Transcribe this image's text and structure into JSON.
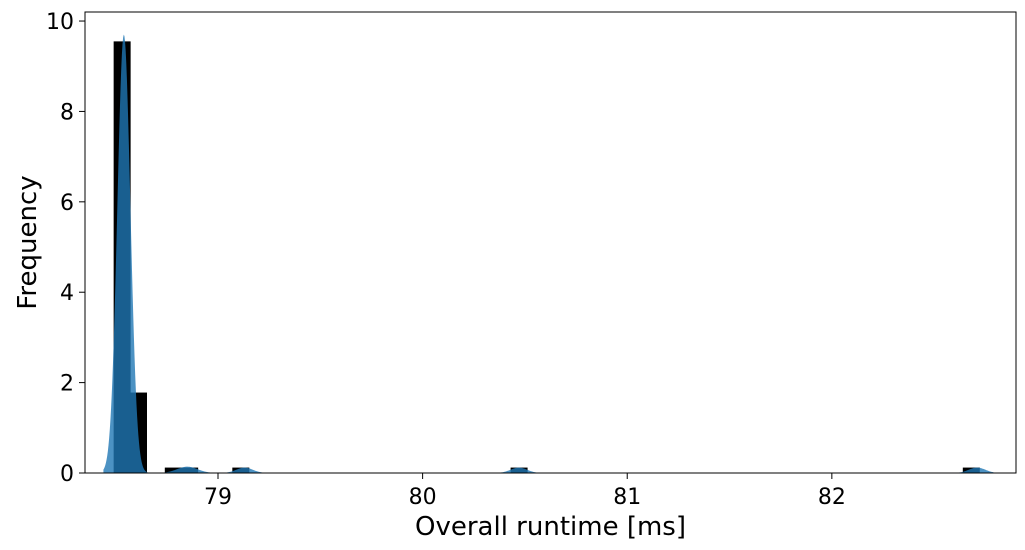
{
  "chart_data": {
    "type": "bar",
    "xlabel": "Overall runtime [ms]",
    "ylabel": "Frequency",
    "xlim": [
      78.35,
      82.9
    ],
    "ylim": [
      0,
      10.2
    ],
    "xticks": [
      79,
      80,
      81,
      82
    ],
    "xtick_labels": [
      "79",
      "80",
      "81",
      "82"
    ],
    "yticks": [
      0,
      2,
      4,
      6,
      8,
      10
    ],
    "ytick_labels": [
      "0",
      "2",
      "4",
      "6",
      "8",
      "10"
    ],
    "bin_width": 0.083,
    "bins": [
      {
        "x": 78.49,
        "value": 9.55
      },
      {
        "x": 78.57,
        "value": 1.78
      },
      {
        "x": 78.74,
        "value": 0.12
      },
      {
        "x": 78.82,
        "value": 0.12
      },
      {
        "x": 79.07,
        "value": 0.12
      },
      {
        "x": 80.43,
        "value": 0.12
      },
      {
        "x": 82.64,
        "value": 0.12
      }
    ],
    "density_peaks": [
      {
        "x": 78.54,
        "height": 9.7,
        "sigma": 0.032
      },
      {
        "x": 78.85,
        "height": 0.14,
        "sigma": 0.05
      },
      {
        "x": 79.13,
        "height": 0.12,
        "sigma": 0.04
      },
      {
        "x": 80.47,
        "height": 0.12,
        "sigma": 0.04
      },
      {
        "x": 82.71,
        "height": 0.12,
        "sigma": 0.04
      }
    ],
    "colors": {
      "bars": "#000000",
      "density": "#1f77b4"
    },
    "grid": false,
    "legend": "none"
  }
}
